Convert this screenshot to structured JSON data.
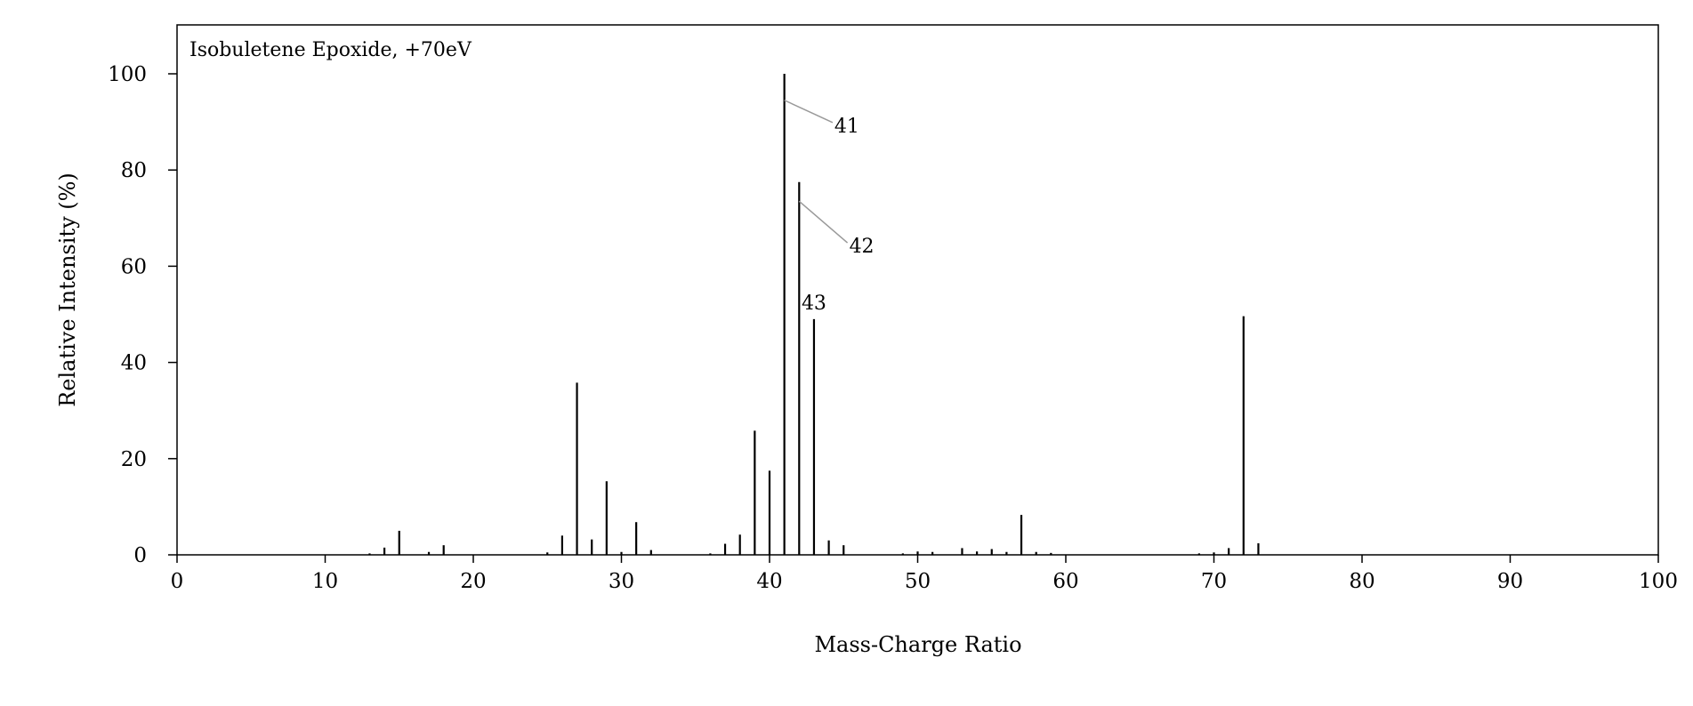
{
  "chart_data": {
    "type": "bar",
    "title": "Isobuletene Epoxide, +70eV",
    "xlabel": "Mass-Charge Ratio",
    "ylabel": "Relative Intensity (%)",
    "xlim": [
      0,
      100
    ],
    "ylim": [
      0,
      100
    ],
    "xticks": [
      0,
      10,
      20,
      30,
      40,
      50,
      60,
      70,
      80,
      90,
      100
    ],
    "yticks": [
      0,
      20,
      40,
      60,
      80,
      100
    ],
    "grid": false,
    "legend": "none",
    "peaks": [
      {
        "mz": 13,
        "intensity": 0.3
      },
      {
        "mz": 14,
        "intensity": 1.5
      },
      {
        "mz": 15,
        "intensity": 5.0
      },
      {
        "mz": 17,
        "intensity": 0.6
      },
      {
        "mz": 18,
        "intensity": 2.0
      },
      {
        "mz": 25,
        "intensity": 0.5
      },
      {
        "mz": 26,
        "intensity": 4.0
      },
      {
        "mz": 27,
        "intensity": 35.8
      },
      {
        "mz": 28,
        "intensity": 3.2
      },
      {
        "mz": 29,
        "intensity": 15.3
      },
      {
        "mz": 30,
        "intensity": 0.6
      },
      {
        "mz": 31,
        "intensity": 6.8
      },
      {
        "mz": 32,
        "intensity": 1.0
      },
      {
        "mz": 36,
        "intensity": 0.3
      },
      {
        "mz": 37,
        "intensity": 2.3
      },
      {
        "mz": 38,
        "intensity": 4.2
      },
      {
        "mz": 39,
        "intensity": 25.8
      },
      {
        "mz": 40,
        "intensity": 17.5
      },
      {
        "mz": 41,
        "intensity": 100.0
      },
      {
        "mz": 42,
        "intensity": 77.5
      },
      {
        "mz": 43,
        "intensity": 49.0
      },
      {
        "mz": 44,
        "intensity": 3.0
      },
      {
        "mz": 45,
        "intensity": 2.0
      },
      {
        "mz": 49,
        "intensity": 0.3
      },
      {
        "mz": 50,
        "intensity": 0.7
      },
      {
        "mz": 51,
        "intensity": 0.6
      },
      {
        "mz": 53,
        "intensity": 1.4
      },
      {
        "mz": 54,
        "intensity": 0.7
      },
      {
        "mz": 55,
        "intensity": 1.2
      },
      {
        "mz": 56,
        "intensity": 0.6
      },
      {
        "mz": 57,
        "intensity": 8.3
      },
      {
        "mz": 58,
        "intensity": 0.6
      },
      {
        "mz": 59,
        "intensity": 0.4
      },
      {
        "mz": 69,
        "intensity": 0.3
      },
      {
        "mz": 70,
        "intensity": 0.5
      },
      {
        "mz": 71,
        "intensity": 1.4
      },
      {
        "mz": 72,
        "intensity": 49.6
      },
      {
        "mz": 73,
        "intensity": 2.4
      }
    ],
    "annotations": [
      {
        "text": "41",
        "mz": 41,
        "intensity": 94.5,
        "label_mz": 44.5,
        "label_intensity": 89.5,
        "leader": true
      },
      {
        "text": "42",
        "mz": 42,
        "intensity": 73.5,
        "label_mz": 45.5,
        "label_intensity": 64.5,
        "leader": true
      },
      {
        "text": "43",
        "mz": 43,
        "intensity": 49.0,
        "label_mz": 43.0,
        "label_intensity": 51.0,
        "leader": false
      }
    ],
    "colors": {
      "bars": "#000000",
      "leader": "#999999",
      "axes": "#000000"
    }
  }
}
